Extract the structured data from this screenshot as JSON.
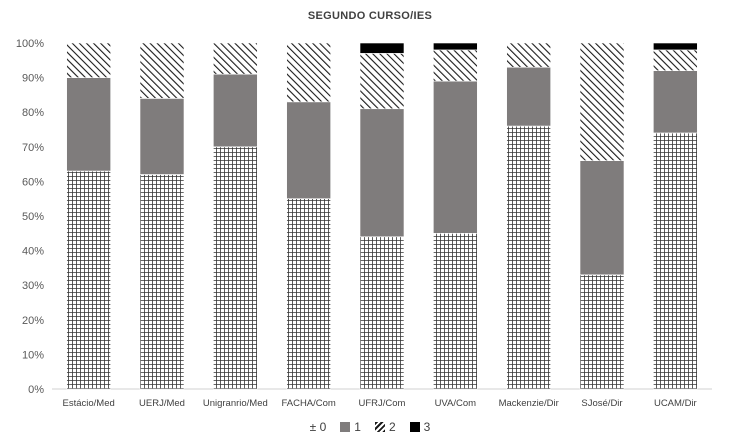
{
  "chart_data": {
    "type": "bar",
    "stacked": true,
    "title": "SEGUNDO CURSO/IES",
    "categories": [
      "Estácio/Med",
      "UERJ/Med",
      "Unigranrio/Med",
      "FACHA/Com",
      "UFRJ/Com",
      "UVA/Com",
      "Mackenzie/Dir",
      "SJosé/Dir",
      "UCAM/Dir"
    ],
    "y_ticks": [
      "0%",
      "10%",
      "20%",
      "30%",
      "40%",
      "50%",
      "60%",
      "70%",
      "80%",
      "90%",
      "100%"
    ],
    "ylim": [
      0,
      100
    ],
    "series": [
      {
        "name": "0",
        "legend_label": "± 0",
        "pattern": "grid",
        "values": [
          63,
          62,
          70,
          55,
          44,
          45,
          76,
          33,
          74
        ]
      },
      {
        "name": "1",
        "legend_label": "1",
        "pattern": "solid",
        "color": "#7f7c7c",
        "values": [
          27,
          22,
          21,
          28,
          37,
          44,
          17,
          33,
          18
        ]
      },
      {
        "name": "2",
        "legend_label": "2",
        "pattern": "diagonal",
        "values": [
          10,
          16,
          9,
          17,
          16,
          9,
          7,
          34,
          6
        ]
      },
      {
        "name": "3",
        "legend_label": "3",
        "pattern": "solid",
        "color": "#000000",
        "values": [
          0,
          0,
          0,
          0,
          3,
          2,
          0,
          0,
          2
        ]
      }
    ],
    "legend_position": "bottom",
    "grid": false
  }
}
